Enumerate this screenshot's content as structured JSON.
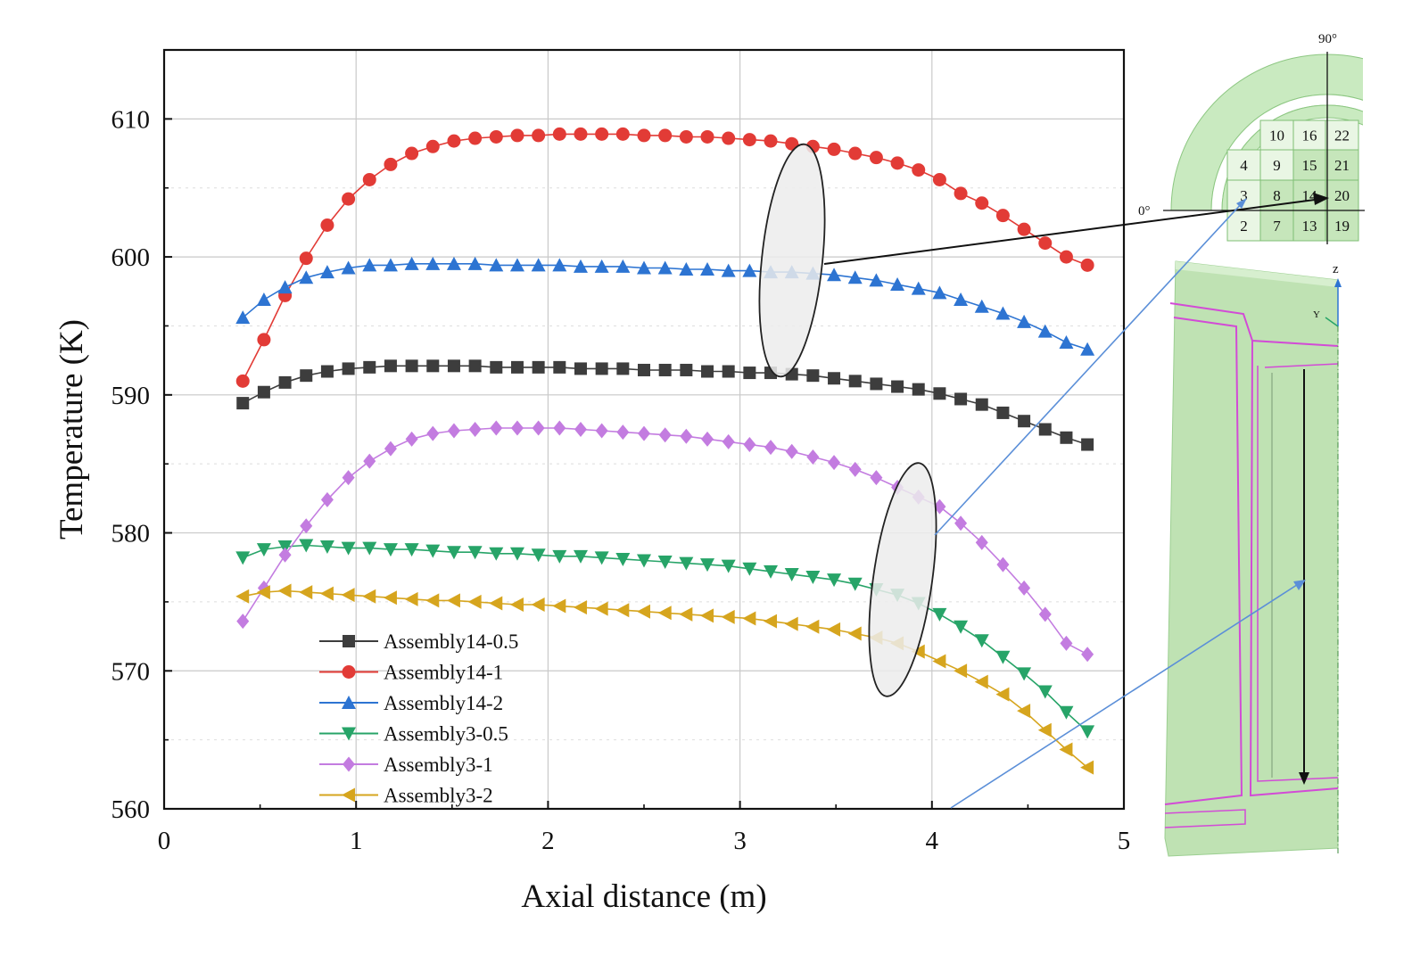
{
  "chart_data": {
    "type": "line",
    "title": "",
    "xlabel": "Axial distance (m)",
    "ylabel": "Temperature (K)",
    "xlim": [
      0,
      5
    ],
    "ylim": [
      560,
      615
    ],
    "x_ticks": [
      "0",
      "1",
      "2",
      "3",
      "4",
      "5"
    ],
    "y_ticks": [
      "560",
      "570",
      "580",
      "590",
      "600",
      "610"
    ],
    "grid": true,
    "legend_position": "bottom-left",
    "x": [
      0.41,
      0.52,
      0.63,
      0.74,
      0.85,
      0.96,
      1.07,
      1.18,
      1.29,
      1.4,
      1.51,
      1.62,
      1.73,
      1.84,
      1.95,
      2.06,
      2.17,
      2.28,
      2.39,
      2.5,
      2.61,
      2.72,
      2.83,
      2.94,
      3.05,
      3.16,
      3.27,
      3.38,
      3.49,
      3.6,
      3.71,
      3.82,
      3.93,
      4.04,
      4.15,
      4.26,
      4.37,
      4.48,
      4.59,
      4.7,
      4.81
    ],
    "series": [
      {
        "name": "Assembly14-0.5",
        "color": "#3d3d3d",
        "marker": "square",
        "values": [
          589.4,
          590.2,
          590.9,
          591.4,
          591.7,
          591.9,
          592.0,
          592.1,
          592.1,
          592.1,
          592.1,
          592.1,
          592.0,
          592.0,
          592.0,
          592.0,
          591.9,
          591.9,
          591.9,
          591.8,
          591.8,
          591.8,
          591.7,
          591.7,
          591.6,
          591.6,
          591.5,
          591.4,
          591.2,
          591.0,
          590.8,
          590.6,
          590.4,
          590.1,
          589.7,
          589.3,
          588.7,
          588.1,
          587.5,
          586.9,
          586.4
        ]
      },
      {
        "name": "Assembly14-1",
        "color": "#e23b36",
        "marker": "circle",
        "values": [
          591.0,
          594.0,
          597.2,
          599.9,
          602.3,
          604.2,
          605.6,
          606.7,
          607.5,
          608.0,
          608.4,
          608.6,
          608.7,
          608.8,
          608.8,
          608.9,
          608.9,
          608.9,
          608.9,
          608.8,
          608.8,
          608.7,
          608.7,
          608.6,
          608.5,
          608.4,
          608.2,
          608.0,
          607.8,
          607.5,
          607.2,
          606.8,
          606.3,
          605.6,
          604.6,
          603.9,
          603.0,
          602.0,
          601.0,
          600.0,
          599.4
        ]
      },
      {
        "name": "Assembly14-2",
        "color": "#2d74d2",
        "marker": "triangle-up",
        "values": [
          595.6,
          596.9,
          597.8,
          598.5,
          598.9,
          599.2,
          599.4,
          599.4,
          599.5,
          599.5,
          599.5,
          599.5,
          599.4,
          599.4,
          599.4,
          599.4,
          599.3,
          599.3,
          599.3,
          599.2,
          599.2,
          599.1,
          599.1,
          599.0,
          599.0,
          598.9,
          598.9,
          598.8,
          598.7,
          598.5,
          598.3,
          598.0,
          597.7,
          597.4,
          596.9,
          596.4,
          595.9,
          595.3,
          594.6,
          593.8,
          593.3
        ]
      },
      {
        "name": "Assembly3-0.5",
        "color": "#27a468",
        "marker": "triangle-down",
        "values": [
          578.2,
          578.8,
          579.0,
          579.1,
          579.0,
          578.9,
          578.9,
          578.8,
          578.8,
          578.7,
          578.6,
          578.6,
          578.5,
          578.5,
          578.4,
          578.3,
          578.3,
          578.2,
          578.1,
          578.0,
          577.9,
          577.8,
          577.7,
          577.6,
          577.4,
          577.2,
          577.0,
          576.8,
          576.6,
          576.3,
          575.9,
          575.5,
          574.9,
          574.1,
          573.2,
          572.2,
          571.0,
          569.8,
          568.5,
          567.0,
          565.6
        ]
      },
      {
        "name": "Assembly3-1",
        "color": "#c37ce0",
        "marker": "diamond",
        "values": [
          573.6,
          576.0,
          578.4,
          580.5,
          582.4,
          584.0,
          585.2,
          586.1,
          586.8,
          587.2,
          587.4,
          587.5,
          587.6,
          587.6,
          587.6,
          587.6,
          587.5,
          587.4,
          587.3,
          587.2,
          587.1,
          587.0,
          586.8,
          586.6,
          586.4,
          586.2,
          585.9,
          585.5,
          585.1,
          584.6,
          584.0,
          583.3,
          582.6,
          581.9,
          580.7,
          579.3,
          577.7,
          576.0,
          574.1,
          572.0,
          571.2
        ]
      },
      {
        "name": "Assembly3-2",
        "color": "#d6a51e",
        "marker": "triangle-left",
        "values": [
          575.4,
          575.7,
          575.8,
          575.7,
          575.6,
          575.5,
          575.4,
          575.3,
          575.2,
          575.1,
          575.1,
          575.0,
          574.9,
          574.8,
          574.8,
          574.7,
          574.6,
          574.5,
          574.4,
          574.3,
          574.2,
          574.1,
          574.0,
          573.9,
          573.8,
          573.6,
          573.4,
          573.2,
          573.0,
          572.7,
          572.4,
          572.0,
          571.4,
          570.7,
          570.0,
          569.2,
          568.3,
          567.1,
          565.7,
          564.3,
          563.0
        ]
      }
    ]
  },
  "inset": {
    "angle_90": "90°",
    "angle_0": "0°",
    "cells": [
      {
        "label": "10",
        "shaded": false
      },
      {
        "label": "16",
        "shaded": false
      },
      {
        "label": "22",
        "shaded": false
      },
      {
        "label": "4",
        "shaded": false
      },
      {
        "label": "9",
        "shaded": false
      },
      {
        "label": "15",
        "shaded": true
      },
      {
        "label": "21",
        "shaded": true
      },
      {
        "label": "3",
        "shaded": false
      },
      {
        "label": "8",
        "shaded": true
      },
      {
        "label": "14",
        "shaded": true
      },
      {
        "label": "20",
        "shaded": true
      },
      {
        "label": "2",
        "shaded": false
      },
      {
        "label": "7",
        "shaded": true
      },
      {
        "label": "13",
        "shaded": true
      },
      {
        "label": "19",
        "shaded": true
      }
    ],
    "axis_z": "z",
    "axis_y": "Y",
    "colors": {
      "ring": "#c9eac0",
      "cell": "#e9f6e4",
      "cell_shaded": "#c6e6bb",
      "body": "#bfe2b3",
      "pipe": "#d24bd6",
      "ellipse": "#ececec"
    }
  }
}
